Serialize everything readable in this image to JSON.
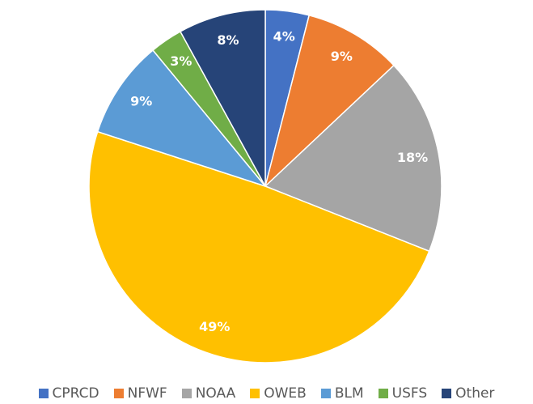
{
  "chart_data": {
    "type": "pie",
    "categories": [
      "CPRCD",
      "NFWF",
      "NOAA",
      "OWEB",
      "BLM",
      "USFS",
      "Other"
    ],
    "values": [
      4,
      9,
      18,
      49,
      9,
      3,
      8
    ],
    "value_labels": [
      "4%",
      "9%",
      "18%",
      "49%",
      "9%",
      "3%",
      "8%"
    ],
    "colors": [
      "#4472c4",
      "#ed7d31",
      "#a5a5a5",
      "#ffc000",
      "#5b9bd5",
      "#70ad47",
      "#264478"
    ],
    "legend": "bottom"
  }
}
